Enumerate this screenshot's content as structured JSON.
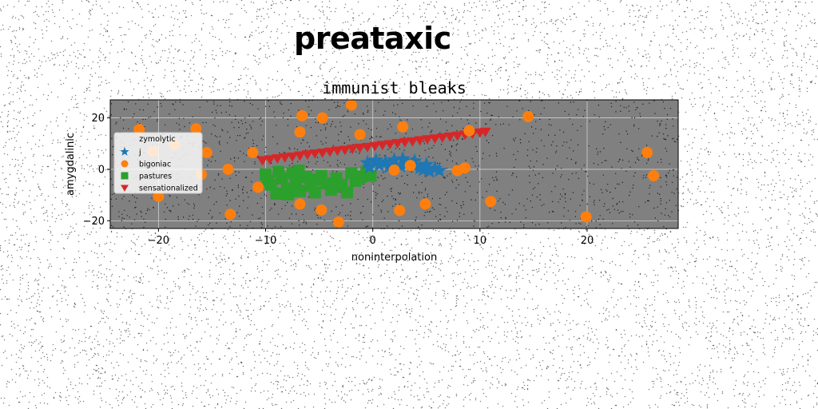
{
  "figure": {
    "suptitle": "preataxic"
  },
  "chart_data": {
    "type": "scatter",
    "title": "immunist bleaks",
    "xlabel": "noninterpolation",
    "ylabel": "amygdalinic",
    "xlim": [
      -24.5,
      28.5
    ],
    "ylim": [
      -23,
      27
    ],
    "xticks": [
      -20,
      -10,
      0,
      10,
      20
    ],
    "yticks": [
      -20,
      0,
      20
    ],
    "grid": true,
    "plot_background": "#808080",
    "legend": {
      "title": "zymolytic",
      "placement": "center-left"
    },
    "series": [
      {
        "name": "j",
        "marker": "star",
        "color": "#1f77b4",
        "points": [
          [
            -0.5,
            2.5
          ],
          [
            0.3,
            3.5
          ],
          [
            1.2,
            2.8
          ],
          [
            2.0,
            3.6
          ],
          [
            2.8,
            4.0
          ],
          [
            3.2,
            2.0
          ],
          [
            3.8,
            1.5
          ],
          [
            4.4,
            0.5
          ],
          [
            5.0,
            1.8
          ],
          [
            5.8,
            0.3
          ],
          [
            6.2,
            -0.5
          ],
          [
            4.7,
            -0.2
          ],
          [
            3.9,
            3.2
          ],
          [
            1.5,
            1.0
          ],
          [
            0.6,
            1.6
          ],
          [
            -0.3,
            0.8
          ],
          [
            5.3,
            -0.8
          ],
          [
            2.6,
            1.2
          ]
        ]
      },
      {
        "name": "bigoniac",
        "marker": "circle",
        "color": "#ff7f0e",
        "points": [
          [
            -21.8,
            15.5
          ],
          [
            -16.5,
            15.8
          ],
          [
            -20.5,
            7.0
          ],
          [
            -18.5,
            9.5
          ],
          [
            -15.5,
            6.5
          ],
          [
            -16.0,
            -2.0
          ],
          [
            -13.5,
            0.0
          ],
          [
            -20.0,
            -10.5
          ],
          [
            -13.3,
            -17.5
          ],
          [
            -11.2,
            6.5
          ],
          [
            -10.7,
            -7.0
          ],
          [
            -6.6,
            20.8
          ],
          [
            -4.7,
            20.0
          ],
          [
            -2.0,
            25.0
          ],
          [
            -1.2,
            13.5
          ],
          [
            -6.8,
            14.5
          ],
          [
            -6.8,
            -13.5
          ],
          [
            -4.8,
            -15.8
          ],
          [
            -3.2,
            -20.5
          ],
          [
            2.8,
            16.5
          ],
          [
            9.0,
            15.0
          ],
          [
            7.9,
            -0.5
          ],
          [
            8.6,
            0.5
          ],
          [
            3.5,
            1.5
          ],
          [
            2.0,
            -0.3
          ],
          [
            2.5,
            -16.0
          ],
          [
            4.9,
            -13.5
          ],
          [
            11.0,
            -12.5
          ],
          [
            14.5,
            20.5
          ],
          [
            19.9,
            -18.5
          ],
          [
            25.6,
            6.5
          ],
          [
            26.2,
            -2.5
          ]
        ]
      },
      {
        "name": "pastures",
        "marker": "square",
        "color": "#2ca02c",
        "points": [
          [
            -10.0,
            -2.0
          ],
          [
            -9.5,
            -6.0
          ],
          [
            -9.0,
            -9.5
          ],
          [
            -8.5,
            -3.5
          ],
          [
            -8.0,
            -7.5
          ],
          [
            -7.5,
            -1.5
          ],
          [
            -7.2,
            -5.0
          ],
          [
            -6.8,
            -8.5
          ],
          [
            -6.2,
            -3.0
          ],
          [
            -5.8,
            -6.5
          ],
          [
            -5.4,
            -9.0
          ],
          [
            -4.8,
            -2.5
          ],
          [
            -4.3,
            -5.5
          ],
          [
            -3.9,
            -8.0
          ],
          [
            -3.4,
            -3.5
          ],
          [
            -2.9,
            -6.0
          ],
          [
            -2.4,
            -9.0
          ],
          [
            -2.0,
            -1.5
          ],
          [
            -1.6,
            -4.5
          ],
          [
            -1.1,
            -3.0
          ],
          [
            -0.6,
            -1.0
          ],
          [
            -0.2,
            -2.5
          ],
          [
            -9.8,
            -4.5
          ],
          [
            -8.8,
            -1.0
          ],
          [
            -6.9,
            -0.5
          ],
          [
            -5.2,
            -4.0
          ],
          [
            -3.6,
            -6.8
          ],
          [
            -7.9,
            -9.8
          ]
        ]
      },
      {
        "name": "sensationalized",
        "marker": "triangle_down",
        "color": "#d62728",
        "points": [
          [
            -10.3,
            3.5
          ],
          [
            -9.6,
            3.9
          ],
          [
            -8.9,
            4.3
          ],
          [
            -8.2,
            4.7
          ],
          [
            -7.5,
            5.0
          ],
          [
            -6.8,
            5.4
          ],
          [
            -6.1,
            5.8
          ],
          [
            -5.4,
            6.2
          ],
          [
            -4.7,
            6.5
          ],
          [
            -4.0,
            6.9
          ],
          [
            -3.3,
            7.3
          ],
          [
            -2.6,
            7.6
          ],
          [
            -1.9,
            8.0
          ],
          [
            -1.2,
            8.4
          ],
          [
            -0.5,
            8.7
          ],
          [
            0.2,
            9.1
          ],
          [
            0.9,
            9.5
          ],
          [
            1.6,
            9.8
          ],
          [
            2.3,
            10.2
          ],
          [
            3.0,
            10.6
          ],
          [
            3.7,
            10.9
          ],
          [
            4.4,
            11.3
          ],
          [
            5.1,
            11.7
          ],
          [
            5.8,
            12.0
          ],
          [
            6.5,
            12.4
          ],
          [
            7.2,
            12.8
          ],
          [
            7.9,
            13.1
          ],
          [
            8.6,
            13.5
          ],
          [
            9.3,
            13.9
          ],
          [
            10.0,
            14.3
          ],
          [
            10.5,
            14.6
          ]
        ]
      }
    ]
  }
}
